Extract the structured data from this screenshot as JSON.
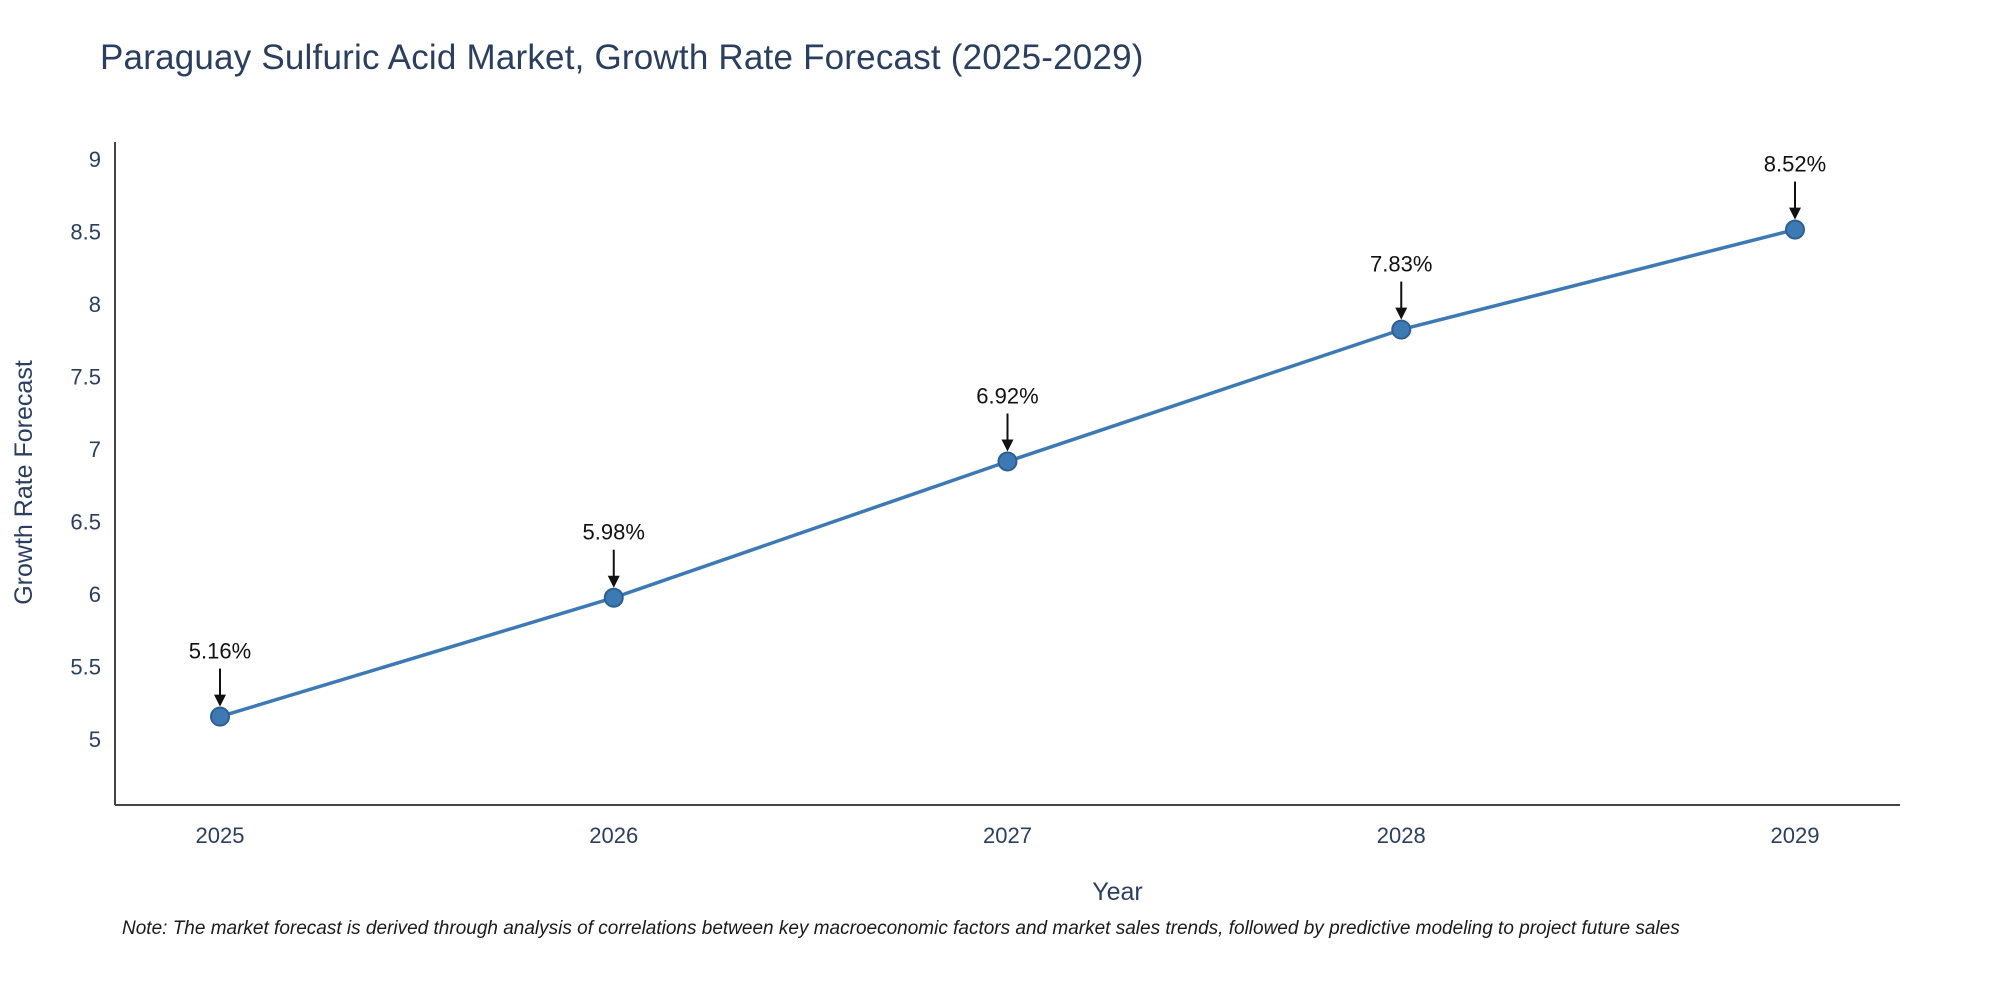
{
  "title": "Paraguay Sulfuric Acid Market, Growth Rate Forecast (2025-2029)",
  "note": "Note: The market forecast is derived through analysis of correlations between key macroeconomic factors and market sales trends, followed by predictive modeling to project future sales",
  "chart_data": {
    "type": "line",
    "title": "Paraguay Sulfuric Acid Market, Growth Rate Forecast (2025-2029)",
    "categories": [
      "2025",
      "2026",
      "2027",
      "2028",
      "2029"
    ],
    "values": [
      5.16,
      5.98,
      6.92,
      7.83,
      8.52
    ],
    "labels": [
      "5.16%",
      "5.98%",
      "6.92%",
      "7.83%",
      "8.52%"
    ],
    "xlabel": "Year",
    "ylabel": "Growth Rate Forecast",
    "ylim": [
      4.55,
      9
    ],
    "yticks": [
      5,
      5.5,
      6,
      6.5,
      7,
      7.5,
      8,
      8.5,
      9
    ],
    "grid": false,
    "legend": "none",
    "line_color": "#3d7ab5",
    "marker_color": "#3d7ab5",
    "marker_edge_color": "#2f5f8f",
    "axis_color": "#444444",
    "tick_color": "#2a3f5f",
    "annotation_color": "#111111"
  }
}
